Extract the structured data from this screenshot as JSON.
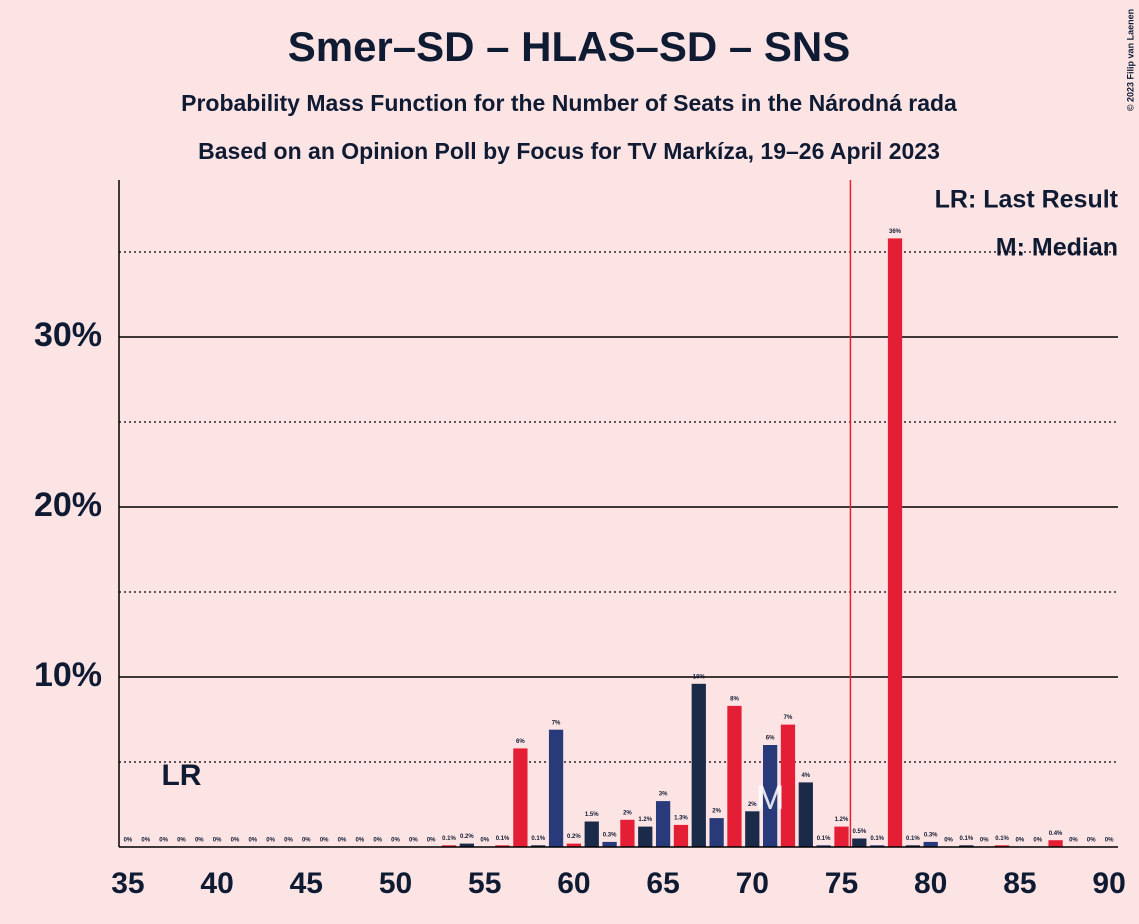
{
  "chart_data": {
    "type": "bar",
    "title": "Smer–SD – HLAS–SD – SNS",
    "subtitle": "Probability Mass Function for the Number of Seats in the Národná rada",
    "subtitle2": "Based on an Opinion Poll by Focus for TV Markíza, 19–26 April 2023",
    "copyright": "© 2023 Filip van Laenen",
    "legend": [
      "LR: Last Result",
      "M: Median"
    ],
    "categories": [
      35,
      36,
      37,
      38,
      39,
      40,
      41,
      42,
      43,
      44,
      45,
      46,
      47,
      48,
      49,
      50,
      51,
      52,
      53,
      54,
      55,
      56,
      57,
      58,
      59,
      60,
      61,
      62,
      63,
      64,
      65,
      66,
      67,
      68,
      69,
      70,
      71,
      72,
      73,
      74,
      75,
      76,
      77,
      78,
      79,
      80,
      81,
      82,
      83,
      84,
      85,
      86,
      87,
      88,
      89,
      90
    ],
    "values": [
      0,
      0,
      0,
      0,
      0,
      0,
      0,
      0,
      0,
      0,
      0,
      0,
      0,
      0,
      0,
      0,
      0,
      0,
      0.1,
      0.2,
      0,
      0.1,
      5.8,
      0.1,
      6.9,
      0.2,
      1.5,
      0.3,
      1.6,
      1.2,
      2.7,
      1.3,
      9.6,
      1.7,
      8.3,
      2.1,
      6.0,
      7.2,
      3.8,
      0.1,
      1.2,
      0.5,
      0.1,
      35.8,
      0.1,
      0.3,
      0,
      0.1,
      0,
      0.1,
      0,
      0,
      0.4,
      0,
      0,
      0
    ],
    "value_labels": [
      "0%",
      "0%",
      "0%",
      "0%",
      "0%",
      "0%",
      "0%",
      "0%",
      "0%",
      "0%",
      "0%",
      "0%",
      "0%",
      "0%",
      "0%",
      "0%",
      "0%",
      "0%",
      "0.1%",
      "0.2%",
      "0%",
      "0.1%",
      "6%",
      "0.1%",
      "7%",
      "0.2%",
      "1.5%",
      "0.3%",
      "2%",
      "1.2%",
      "3%",
      "1.3%",
      "10%",
      "2%",
      "8%",
      "2%",
      "6%",
      "7%",
      "4%",
      "0.1%",
      "1.2%",
      "0.5%",
      "0.1%",
      "36%",
      "0.1%",
      "0.3%",
      "0%",
      "0.1%",
      "0%",
      "0.1%",
      "0%",
      "0%",
      "0.4%",
      "0%",
      "0%",
      "0%"
    ],
    "colors": [
      "#e41f35",
      "#1c2a4a",
      "#283a7a",
      "#e41f35",
      "#1c2a4a",
      "#283a7a",
      "#e41f35",
      "#1c2a4a",
      "#283a7a",
      "#e41f35",
      "#1c2a4a",
      "#283a7a",
      "#e41f35",
      "#1c2a4a",
      "#283a7a",
      "#e41f35",
      "#1c2a4a",
      "#283a7a",
      "#e41f35",
      "#1c2a4a",
      "#283a7a",
      "#e41f35",
      "#e41f35",
      "#1c2a4a",
      "#283a7a",
      "#e41f35",
      "#1c2a4a",
      "#283a7a",
      "#e41f35",
      "#1c2a4a",
      "#283a7a",
      "#e41f35",
      "#1c2a4a",
      "#283a7a",
      "#e41f35",
      "#1c2a4a",
      "#283a7a",
      "#e41f35",
      "#1c2a4a",
      "#283a7a",
      "#e41f35",
      "#1c2a4a",
      "#283a7a",
      "#e41f35",
      "#1c2a4a",
      "#283a7a",
      "#e41f35",
      "#1c2a4a",
      "#283a7a",
      "#e41f35",
      "#1c2a4a",
      "#283a7a",
      "#e41f35",
      "#1c2a4a",
      "#283a7a",
      "#e41f35"
    ],
    "xlim": [
      34.5,
      90.5
    ],
    "xticks": [
      35,
      40,
      45,
      50,
      55,
      60,
      65,
      70,
      75,
      80,
      85,
      90
    ],
    "ylim": [
      0,
      39
    ],
    "yticks": [
      {
        "value": 10,
        "label": "10%"
      },
      {
        "value": 20,
        "label": "20%"
      },
      {
        "value": 30,
        "label": "30%"
      }
    ],
    "minor_gridlines": [
      5,
      15,
      25,
      35
    ],
    "majority_line": 75.5,
    "majority_color": "#e41f35",
    "annotations": [
      {
        "text": "LR",
        "x": 38
      },
      {
        "text": "M",
        "x": 71
      }
    ]
  }
}
